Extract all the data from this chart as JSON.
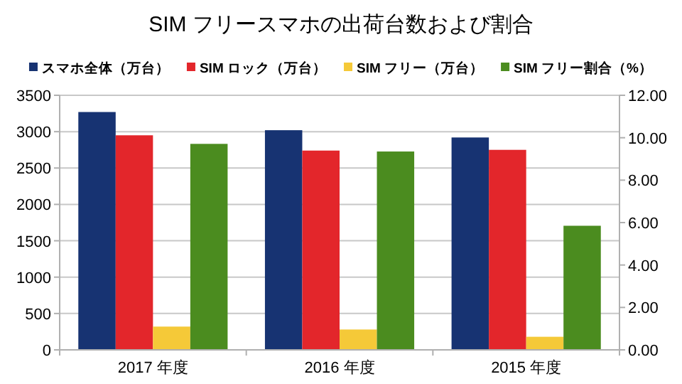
{
  "chart_data": {
    "type": "bar",
    "title": "SIM フリースマホの出荷台数および割合",
    "categories": [
      "2017 年度",
      "2016 年度",
      "2015 年度"
    ],
    "series": [
      {
        "name": "スマホ全体（万台）",
        "color": "#173372",
        "values": [
          3270,
          3020,
          2920
        ]
      },
      {
        "name": "SIM ロック（万台）",
        "color": "#e3262b",
        "values": [
          2950,
          2740,
          2750
        ]
      },
      {
        "name": "SIM フリー（万台）",
        "color": "#f5c938",
        "values": [
          320,
          280,
          180
        ]
      },
      {
        "name": "SIM フリー割合（%）",
        "color": "#4b8c1f",
        "values": [
          9.71,
          9.35,
          5.85
        ],
        "axis": "y2"
      }
    ],
    "ylim": [
      0,
      3500
    ],
    "yticks": [
      0,
      500,
      1000,
      1500,
      2000,
      2500,
      3000,
      3500
    ],
    "y2lim": [
      0,
      12
    ],
    "y2ticks": [
      {
        "value": 0,
        "label": "0.00"
      },
      {
        "value": 2,
        "label": "2.00"
      },
      {
        "value": 4,
        "label": "4.00"
      },
      {
        "value": 6,
        "label": "6.00"
      },
      {
        "value": 8,
        "label": "8.00"
      },
      {
        "value": 10,
        "label": "10.00"
      },
      {
        "value": 12,
        "label": "12.00"
      }
    ],
    "grid": "y",
    "legend": "top"
  }
}
